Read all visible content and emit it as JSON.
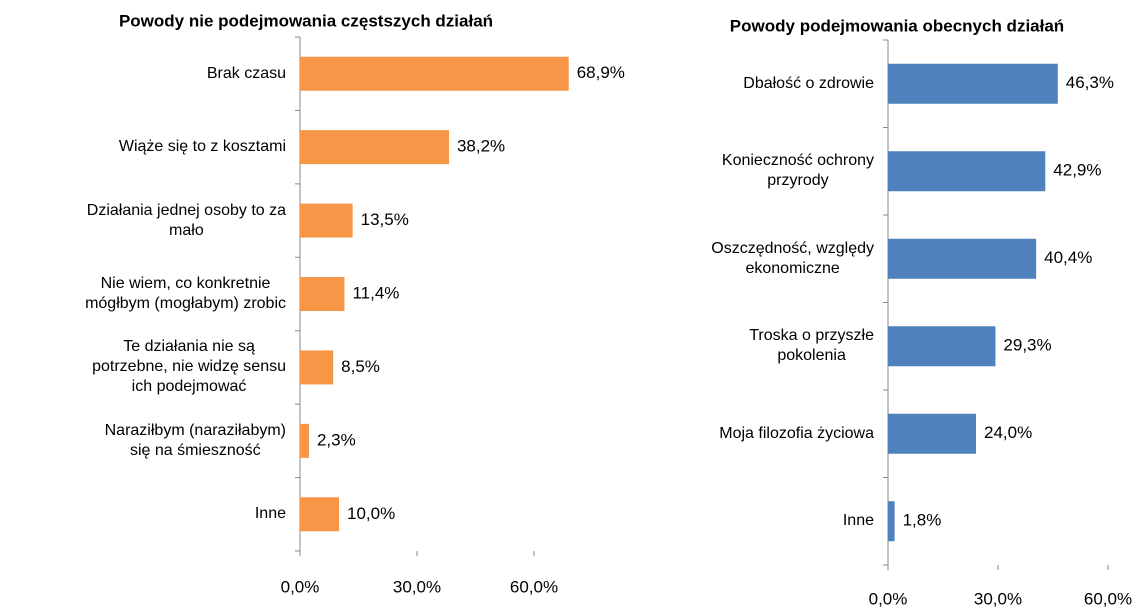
{
  "chart_data": [
    {
      "type": "bar",
      "orientation": "horizontal",
      "title": "Powody nie podejmowania częstszych działań",
      "categories": [
        "Brak czasu",
        "Wiąże się to z kosztami",
        "Działania jednej osoby to za\nmało",
        "Nie wiem, co konkretnie\nmógłbym (mogłabym) zrobic",
        "Te działania nie są\npotrzebne, nie widzę sensu\nich podejmować",
        "Naraziłbym (naraziłabym)\nsię na śmieszność",
        "Inne"
      ],
      "values": [
        68.9,
        38.2,
        13.5,
        11.4,
        8.5,
        2.3,
        10.0
      ],
      "value_labels": [
        "68,9%",
        "38,2%",
        "13,5%",
        "11,4%",
        "8,5%",
        "2,3%",
        "10,0%"
      ],
      "color": "#f79646",
      "xlim": [
        0,
        70
      ],
      "xticks": [
        {
          "value": 0,
          "label": "0,0%"
        },
        {
          "value": 30,
          "label": "30,0%"
        },
        {
          "value": 60,
          "label": "60,0%"
        }
      ]
    },
    {
      "type": "bar",
      "orientation": "horizontal",
      "title": "Powody podejmowania obecnych działań",
      "categories": [
        "Dbałość o zdrowie",
        "Konieczność ochrony\nprzyrody",
        "Oszczędność, względy\nekonomiczne",
        "Troska o przyszłe\npokolenia",
        "Moja filozofia życiowa",
        "Inne"
      ],
      "values": [
        46.3,
        42.9,
        40.4,
        29.3,
        24.0,
        1.8
      ],
      "value_labels": [
        "46,3%",
        "42,9%",
        "40,4%",
        "29,3%",
        "24,0%",
        "1,8%"
      ],
      "color": "#4f81bd",
      "xlim": [
        0,
        60
      ],
      "xticks": [
        {
          "value": 0,
          "label": "0,0%"
        },
        {
          "value": 30,
          "label": "30,0%"
        },
        {
          "value": 60,
          "label": "60,0%"
        }
      ]
    }
  ]
}
